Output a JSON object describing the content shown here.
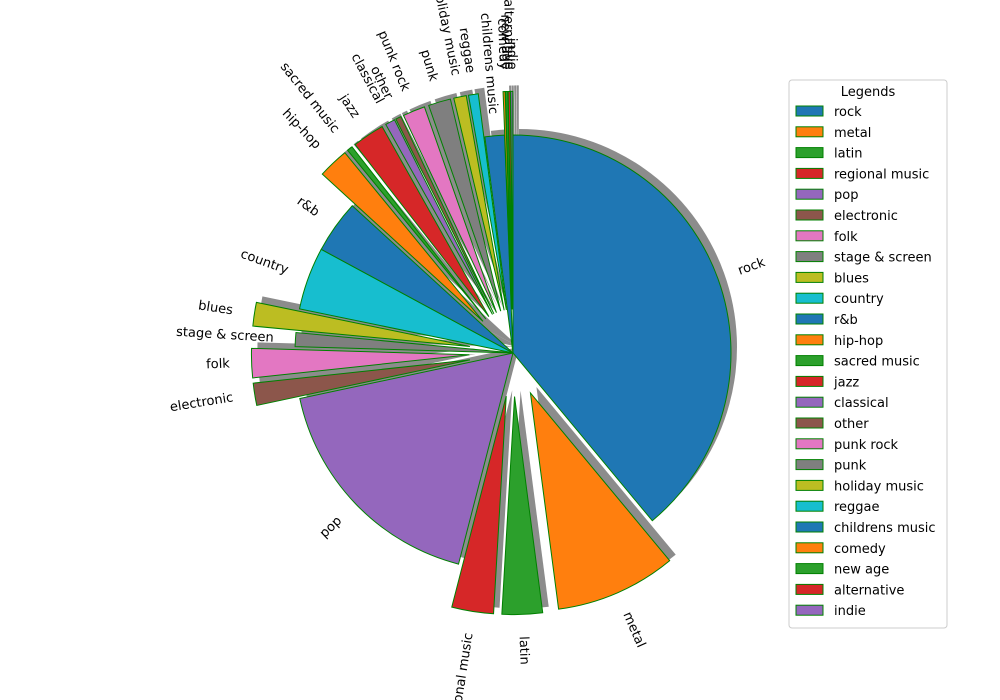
{
  "chart_data": {
    "type": "pie",
    "title": "",
    "legend_title": "Legends",
    "legend_position": "right",
    "shadow": true,
    "edge_color": "#008000",
    "shadow_color": "#8c8c8c",
    "start_angle_deg": 90,
    "direction": "clockwise",
    "slices": [
      {
        "label": "rock",
        "value": 37.8,
        "explode": 0.0,
        "color": "#1f77b4"
      },
      {
        "label": "metal",
        "value": 8.7,
        "explode": 0.2,
        "color": "#ff7f0e"
      },
      {
        "label": "latin",
        "value": 2.9,
        "explode": 0.2,
        "color": "#2ca02c"
      },
      {
        "label": "regional music",
        "value": 3.0,
        "explode": 0.2,
        "color": "#d62728"
      },
      {
        "label": "pop",
        "value": 17.1,
        "explode": 0.0,
        "color": "#9467bd"
      },
      {
        "label": "electronic",
        "value": 1.6,
        "explode": 0.2,
        "color": "#8c564b"
      },
      {
        "label": "folk",
        "value": 2.1,
        "explode": 0.2,
        "color": "#e377c2"
      },
      {
        "label": "stage & screen",
        "value": 1.0,
        "explode": 0.0,
        "color": "#7f7f7f"
      },
      {
        "label": "blues",
        "value": 1.7,
        "explode": 0.2,
        "color": "#bcbd22"
      },
      {
        "label": "country",
        "value": 4.5,
        "explode": 0.0,
        "color": "#17becf"
      },
      {
        "label": "r&b",
        "value": 3.8,
        "explode": 0.0,
        "color": "#1f77b4"
      },
      {
        "label": "hip-hop",
        "value": 2.2,
        "explode": 0.2,
        "color": "#ff7f0e"
      },
      {
        "label": "sacred music",
        "value": 0.4,
        "explode": 0.2,
        "color": "#2ca02c"
      },
      {
        "label": "jazz",
        "value": 2.3,
        "explode": 0.2,
        "color": "#d62728"
      },
      {
        "label": "classical",
        "value": 0.7,
        "explode": 0.2,
        "color": "#9467bd"
      },
      {
        "label": "other",
        "value": 0.4,
        "explode": 0.2,
        "color": "#8c564b"
      },
      {
        "label": "punk rock",
        "value": 1.6,
        "explode": 0.2,
        "color": "#e377c2"
      },
      {
        "label": "punk",
        "value": 1.6,
        "explode": 0.2,
        "color": "#7f7f7f"
      },
      {
        "label": "holiday music",
        "value": 0.9,
        "explode": 0.2,
        "color": "#bcbd22"
      },
      {
        "label": "reggae",
        "value": 0.7,
        "explode": 0.2,
        "color": "#17becf"
      },
      {
        "label": "childrens music",
        "value": 1.4,
        "explode": 0.0,
        "color": "#1f77b4"
      },
      {
        "label": "comedy",
        "value": 0.15,
        "explode": 0.2,
        "color": "#ff7f0e"
      },
      {
        "label": "new age",
        "value": 0.15,
        "explode": 0.2,
        "color": "#2ca02c"
      },
      {
        "label": "alternative",
        "value": 0.15,
        "explode": 0.2,
        "color": "#d62728"
      },
      {
        "label": "indie",
        "value": 0.15,
        "explode": 0.2,
        "color": "#9467bd"
      }
    ]
  }
}
